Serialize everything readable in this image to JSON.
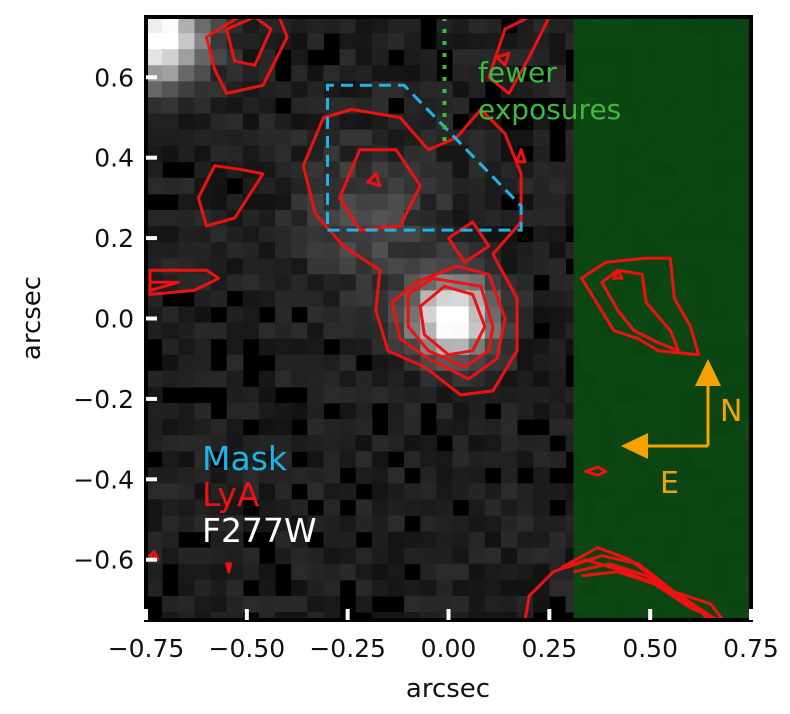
{
  "chart_data": {
    "type": "image",
    "xlabel": "arcsec",
    "ylabel": "arcsec",
    "xlim": [
      -0.75,
      0.75
    ],
    "ylim": [
      -0.75,
      0.75
    ],
    "xticks": [
      -0.75,
      -0.5,
      -0.25,
      0.0,
      0.25,
      0.5,
      0.75
    ],
    "xtick_labels": [
      "−0.75",
      "−0.50",
      "−0.25",
      "0.00",
      "0.25",
      "0.50",
      "0.75"
    ],
    "yticks": [
      -0.6,
      -0.4,
      -0.2,
      0.0,
      0.2,
      0.4,
      0.6
    ],
    "ytick_labels": [
      "−0.6",
      "−0.4",
      "−0.2",
      "0.0",
      "0.2",
      "0.4",
      "0.6"
    ],
    "grid": false,
    "background": {
      "image_name": "F277W",
      "colormap": "gray",
      "pixel_scale": 0.04,
      "sources": [
        {
          "x": 0.01,
          "y": 0.0,
          "peak": 1.0,
          "sigma": 0.07
        },
        {
          "x": -0.72,
          "y": 0.7,
          "peak": 0.95,
          "sigma": 0.08
        }
      ]
    },
    "shaded_region": {
      "label": "fewer exposures",
      "x_range": [
        0.31,
        0.75
      ],
      "y_range": [
        -0.75,
        0.75
      ],
      "color": "#0b4a12"
    },
    "divider_line": {
      "x": -0.01,
      "y_range": [
        0.43,
        0.75
      ],
      "style": "dotted",
      "color": "#3dbb3d"
    },
    "mask": {
      "label": "Mask",
      "color": "#1fb4e8",
      "style": "dashed",
      "polygon": [
        [
          -0.3,
          0.22
        ],
        [
          0.18,
          0.22
        ],
        [
          0.18,
          0.28
        ],
        [
          -0.11,
          0.58
        ],
        [
          -0.3,
          0.58
        ]
      ]
    },
    "contours": {
      "label": "LyA",
      "color": "#ee1111",
      "groups": [
        {
          "levels": [
            [
              [
                -0.36,
                0.38
              ],
              [
                -0.31,
                0.5
              ],
              [
                -0.24,
                0.52
              ],
              [
                -0.12,
                0.5
              ],
              [
                -0.05,
                0.42
              ],
              [
                0.02,
                0.45
              ],
              [
                0.08,
                0.52
              ],
              [
                0.14,
                0.46
              ],
              [
                0.18,
                0.36
              ],
              [
                0.18,
                0.24
              ],
              [
                0.11,
                0.16
              ],
              [
                0.17,
                0.05
              ],
              [
                0.17,
                -0.08
              ],
              [
                0.11,
                -0.18
              ],
              [
                0.03,
                -0.19
              ],
              [
                -0.06,
                -0.12
              ],
              [
                -0.15,
                -0.08
              ],
              [
                -0.18,
                0.02
              ],
              [
                -0.17,
                0.12
              ],
              [
                -0.26,
                0.18
              ],
              [
                -0.33,
                0.26
              ]
            ],
            [
              [
                -0.27,
                0.3
              ],
              [
                -0.22,
                0.42
              ],
              [
                -0.13,
                0.42
              ],
              [
                -0.07,
                0.33
              ],
              [
                -0.12,
                0.23
              ],
              [
                -0.22,
                0.22
              ]
            ],
            [
              [
                0.0,
                0.2
              ],
              [
                0.06,
                0.24
              ],
              [
                0.1,
                0.18
              ],
              [
                0.04,
                0.14
              ]
            ],
            [
              [
                0.1,
                0.11
              ],
              [
                0.14,
                0.0
              ],
              [
                0.12,
                -0.1
              ],
              [
                0.05,
                -0.15
              ],
              [
                -0.05,
                -0.1
              ],
              [
                -0.12,
                -0.05
              ],
              [
                -0.14,
                0.04
              ],
              [
                -0.08,
                0.09
              ],
              [
                0.02,
                0.13
              ]
            ],
            [
              [
                0.08,
                0.08
              ],
              [
                0.11,
                -0.02
              ],
              [
                0.1,
                -0.08
              ],
              [
                0.04,
                -0.12
              ],
              [
                -0.05,
                -0.08
              ],
              [
                -0.1,
                -0.02
              ],
              [
                -0.1,
                0.06
              ],
              [
                -0.04,
                0.1
              ]
            ],
            [
              [
                0.06,
                0.06
              ],
              [
                0.09,
                -0.02
              ],
              [
                0.06,
                -0.08
              ],
              [
                0.0,
                -0.09
              ],
              [
                -0.06,
                -0.04
              ],
              [
                -0.07,
                0.03
              ],
              [
                -0.01,
                0.08
              ]
            ],
            [
              [
                -0.2,
                0.34
              ],
              [
                -0.18,
                0.36
              ],
              [
                -0.17,
                0.33
              ]
            ],
            [
              [
                0.17,
                0.39
              ],
              [
                0.18,
                0.42
              ],
              [
                0.19,
                0.39
              ]
            ]
          ]
        },
        {
          "levels": [
            [
              [
                -0.51,
                0.37
              ],
              [
                -0.46,
                0.36
              ],
              [
                -0.53,
                0.25
              ],
              [
                -0.6,
                0.23
              ],
              [
                -0.62,
                0.3
              ],
              [
                -0.58,
                0.38
              ]
            ],
            [
              [
                -0.74,
                0.12
              ],
              [
                -0.6,
                0.12
              ],
              [
                -0.57,
                0.1
              ],
              [
                -0.63,
                0.07
              ],
              [
                -0.74,
                0.06
              ]
            ],
            [
              [
                -0.74,
                0.09
              ],
              [
                -0.67,
                0.09
              ],
              [
                -0.74,
                0.07
              ]
            ],
            [
              [
                -0.6,
                0.7
              ],
              [
                -0.52,
                0.75
              ],
              [
                -0.42,
                0.75
              ],
              [
                -0.4,
                0.7
              ],
              [
                -0.46,
                0.58
              ],
              [
                -0.55,
                0.56
              ],
              [
                -0.58,
                0.62
              ]
            ],
            [
              [
                -0.55,
                0.72
              ],
              [
                -0.48,
                0.75
              ],
              [
                -0.44,
                0.72
              ],
              [
                -0.48,
                0.63
              ],
              [
                -0.53,
                0.64
              ]
            ],
            [
              [
                0.1,
                0.6
              ],
              [
                0.14,
                0.72
              ],
              [
                0.2,
                0.75
              ],
              [
                0.25,
                0.75
              ],
              [
                0.2,
                0.65
              ],
              [
                0.15,
                0.56
              ]
            ],
            [
              [
                0.12,
                0.65
              ],
              [
                0.14,
                0.63
              ],
              [
                0.15,
                0.66
              ]
            ]
          ]
        },
        {
          "levels": [
            [
              [
                0.33,
                0.1
              ],
              [
                0.39,
                0.14
              ],
              [
                0.49,
                0.15
              ],
              [
                0.55,
                0.15
              ],
              [
                0.56,
                0.05
              ],
              [
                0.6,
                -0.02
              ],
              [
                0.62,
                -0.09
              ],
              [
                0.52,
                -0.08
              ],
              [
                0.47,
                -0.05
              ],
              [
                0.41,
                -0.03
              ]
            ],
            [
              [
                0.38,
                0.09
              ],
              [
                0.42,
                0.12
              ],
              [
                0.48,
                0.11
              ],
              [
                0.49,
                0.04
              ],
              [
                0.55,
                -0.03
              ],
              [
                0.57,
                -0.08
              ],
              [
                0.52,
                -0.06
              ],
              [
                0.46,
                -0.03
              ],
              [
                0.42,
                0.02
              ]
            ],
            [
              [
                0.41,
                0.1
              ],
              [
                0.42,
                0.12
              ],
              [
                0.43,
                0.1
              ]
            ],
            [
              [
                0.34,
                -0.38
              ],
              [
                0.37,
                -0.37
              ],
              [
                0.39,
                -0.38
              ],
              [
                0.37,
                -0.39
              ]
            ]
          ]
        },
        {
          "levels": [
            [
              [
                0.19,
                -0.75
              ],
              [
                0.2,
                -0.69
              ],
              [
                0.26,
                -0.63
              ],
              [
                0.34,
                -0.6
              ],
              [
                0.44,
                -0.63
              ],
              [
                0.56,
                -0.68
              ],
              [
                0.65,
                -0.71
              ],
              [
                0.68,
                -0.75
              ]
            ],
            [
              [
                0.28,
                -0.62
              ],
              [
                0.37,
                -0.57
              ],
              [
                0.45,
                -0.6
              ],
              [
                0.54,
                -0.67
              ],
              [
                0.63,
                -0.73
              ],
              [
                0.64,
                -0.75
              ]
            ],
            [
              [
                0.29,
                -0.62
              ],
              [
                0.38,
                -0.59
              ],
              [
                0.47,
                -0.61
              ],
              [
                0.56,
                -0.68
              ],
              [
                0.65,
                -0.74
              ]
            ],
            [
              [
                0.31,
                -0.63
              ],
              [
                0.4,
                -0.61
              ],
              [
                0.49,
                -0.64
              ],
              [
                0.58,
                -0.7
              ],
              [
                0.66,
                -0.75
              ]
            ],
            [
              [
                0.33,
                -0.64
              ],
              [
                0.42,
                -0.63
              ],
              [
                0.51,
                -0.66
              ],
              [
                0.6,
                -0.72
              ],
              [
                0.67,
                -0.75
              ]
            ]
          ]
        },
        {
          "levels": [
            [
              [
                -0.74,
                -0.59
              ],
              [
                -0.73,
                -0.58
              ],
              [
                -0.72,
                -0.6
              ]
            ],
            [
              [
                -0.55,
                -0.61
              ],
              [
                -0.545,
                -0.63
              ],
              [
                -0.54,
                -0.61
              ]
            ]
          ]
        }
      ]
    },
    "legend": [
      {
        "text": "Mask",
        "color": "#1fb4e8"
      },
      {
        "text": "LyA",
        "color": "#ee1111"
      },
      {
        "text": "F277W",
        "color": "#ffffff"
      }
    ],
    "annotations": [
      {
        "text": "fewer",
        "color": "#3dbb3d"
      },
      {
        "text": "exposures",
        "color": "#3dbb3d"
      }
    ],
    "compass": {
      "north_label": "N",
      "east_label": "E",
      "color": "#f5a300"
    }
  }
}
